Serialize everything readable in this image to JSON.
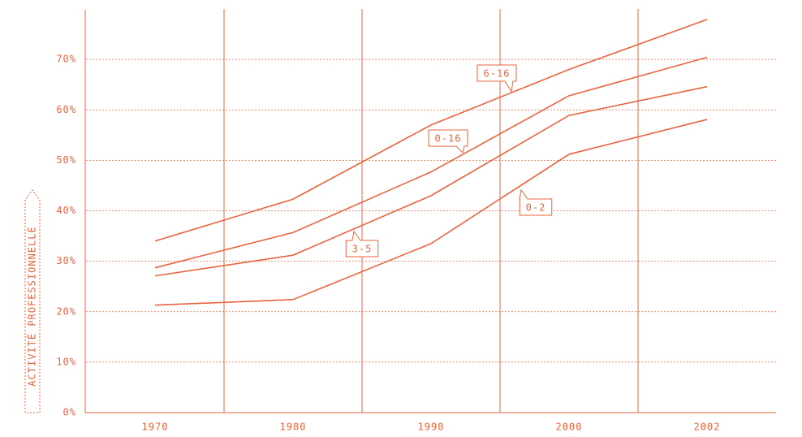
{
  "chart_data": {
    "type": "line",
    "y_label": "ACTIVITÉ PROFESSIONNELLE",
    "categories": [
      "1970",
      "1980",
      "1990",
      "2000",
      "2002"
    ],
    "series": [
      {
        "name": "6-16",
        "color": "#e8643e",
        "values": [
          34.0,
          42.3,
          57.0,
          68.0,
          77.9
        ]
      },
      {
        "name": "0-16",
        "color": "#e8643e",
        "values": [
          28.7,
          35.7,
          47.7,
          62.8,
          70.4
        ]
      },
      {
        "name": "3-5",
        "color": "#e8643e",
        "values": [
          27.1,
          31.2,
          43.0,
          58.9,
          64.6
        ]
      },
      {
        "name": "0-2",
        "color": "#e8643e",
        "values": [
          21.3,
          22.4,
          33.5,
          51.2,
          58.1
        ]
      }
    ],
    "ylim": [
      0,
      80
    ],
    "yticks": [
      {
        "value": 0,
        "label": "0%"
      },
      {
        "value": 10,
        "label": "10%"
      },
      {
        "value": 20,
        "label": "20%"
      },
      {
        "value": 30,
        "label": "30%"
      },
      {
        "value": 40,
        "label": "40%"
      },
      {
        "value": 50,
        "label": "50%"
      },
      {
        "value": 60,
        "label": "60%"
      },
      {
        "value": 70,
        "label": "70%"
      }
    ],
    "grid": true
  }
}
